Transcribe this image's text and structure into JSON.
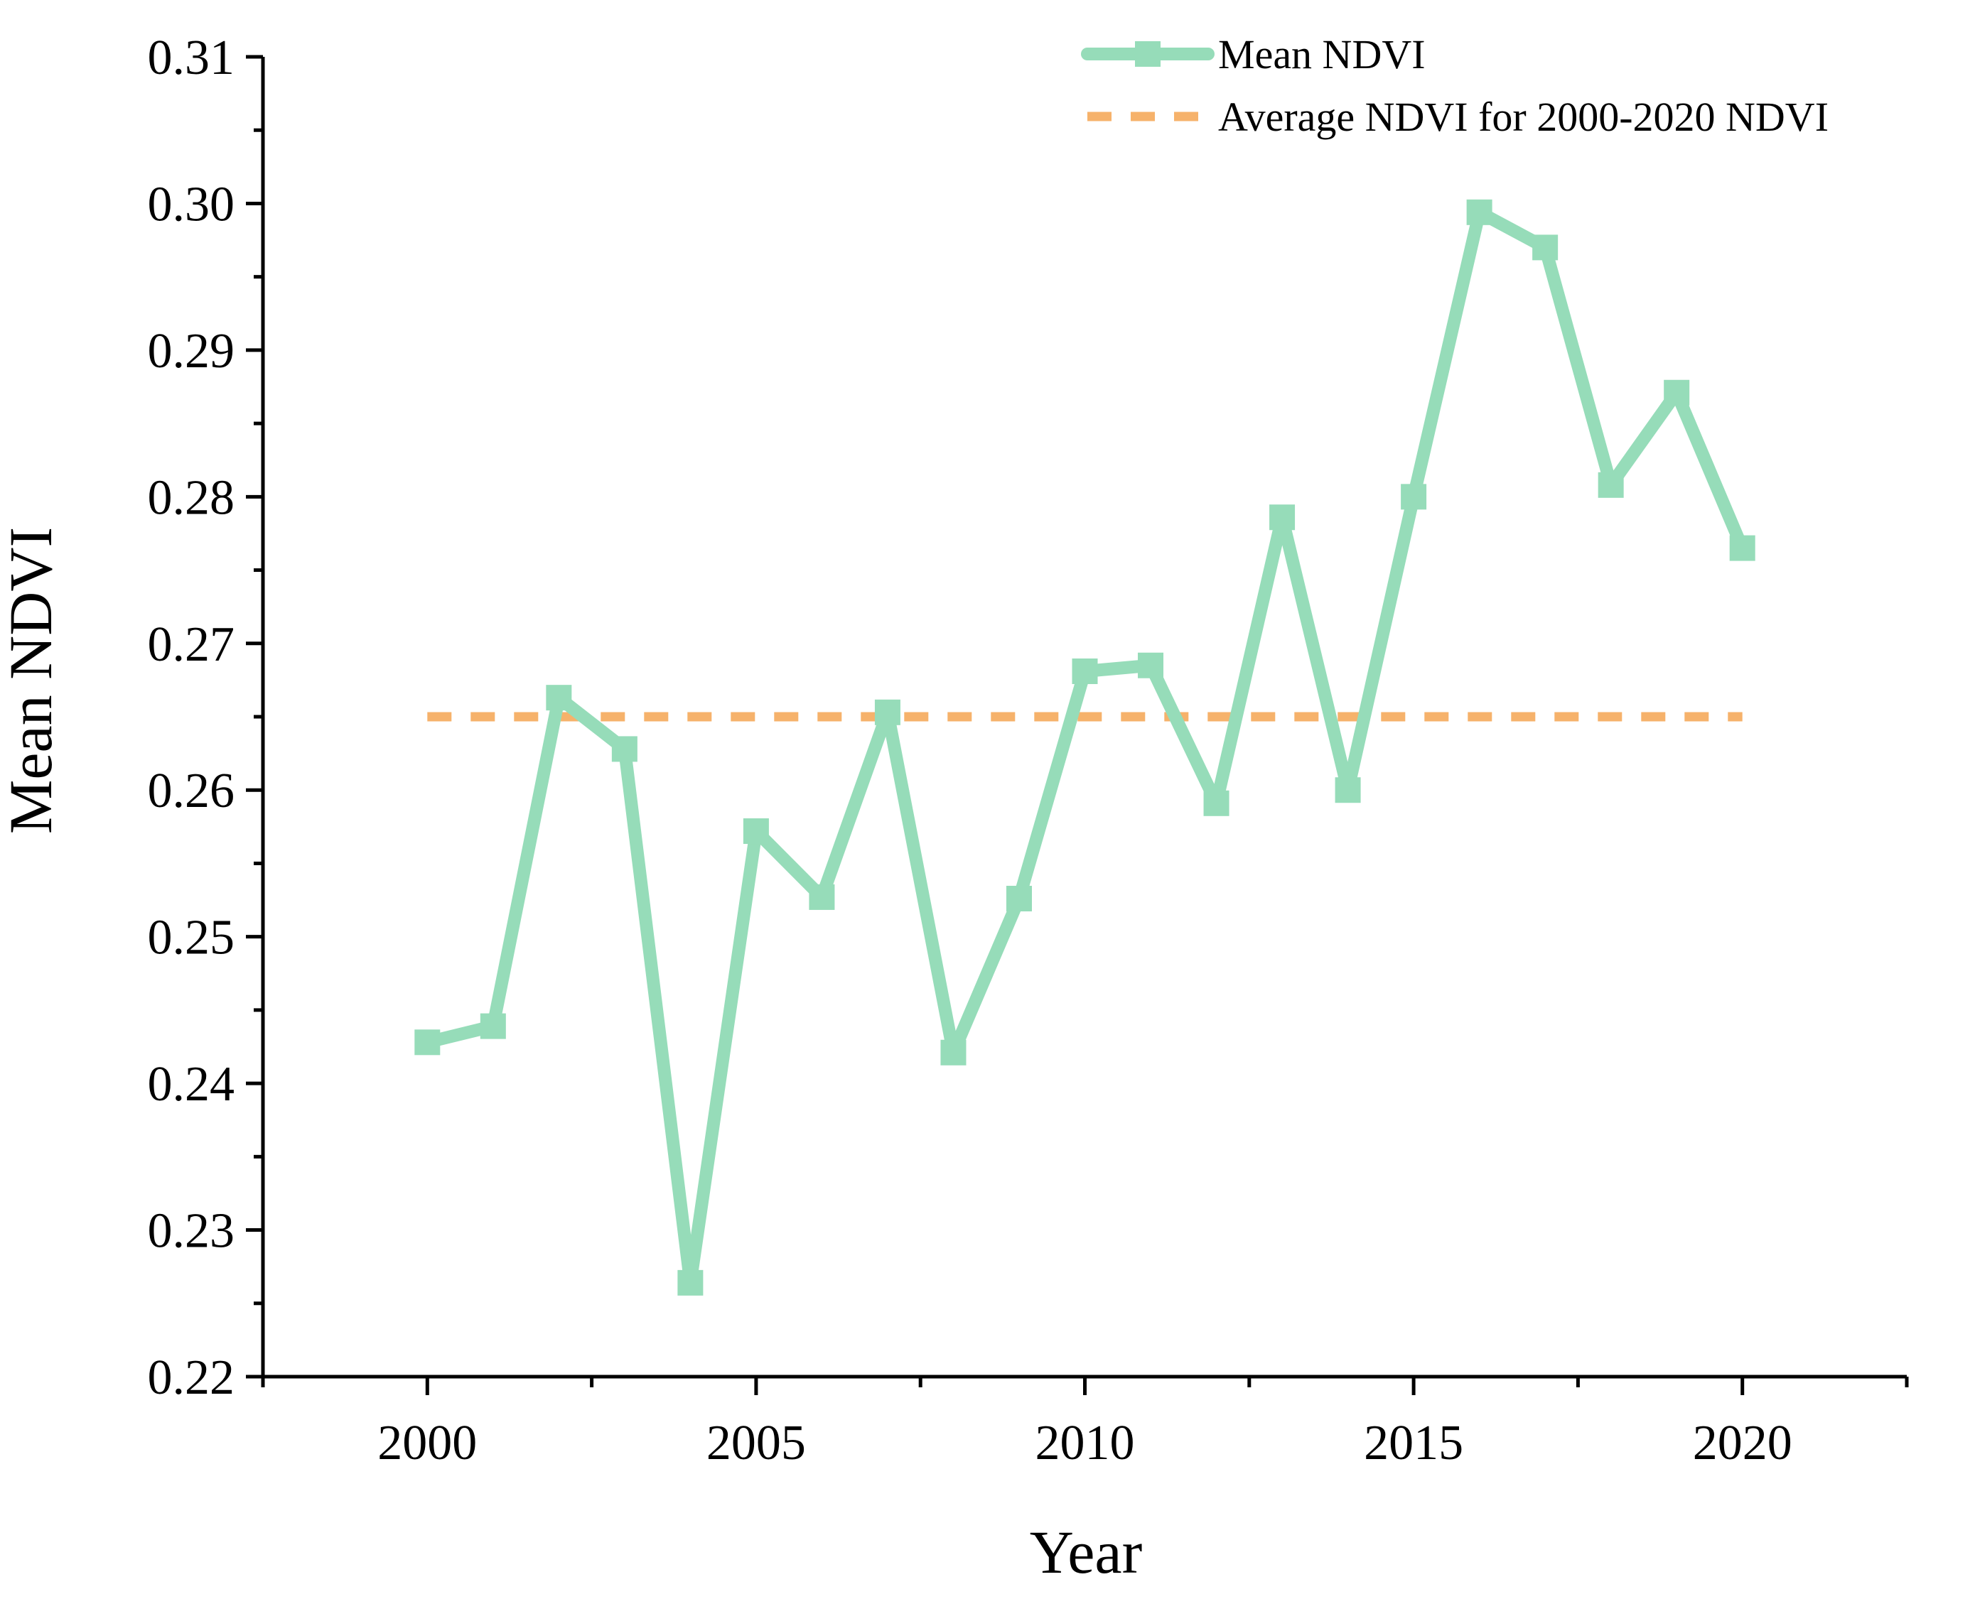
{
  "chart_data": {
    "type": "line",
    "title": "",
    "xlabel": "Year",
    "ylabel": "Mean NDVI",
    "xlim": [
      1997.5,
      2022.5
    ],
    "ylim": [
      0.22,
      0.31
    ],
    "x_ticks": [
      2000,
      2005,
      2010,
      2015,
      2020
    ],
    "x_tick_labels": [
      "2000",
      "2005",
      "2010",
      "2015",
      "2020"
    ],
    "y_ticks": [
      0.22,
      0.23,
      0.24,
      0.25,
      0.26,
      0.27,
      0.28,
      0.29,
      0.3,
      0.31
    ],
    "y_tick_labels": [
      "0.22",
      "0.23",
      "0.24",
      "0.25",
      "0.26",
      "0.27",
      "0.28",
      "0.29",
      "0.30",
      "0.31"
    ],
    "grid": false,
    "legend_position": "top-right",
    "series": [
      {
        "name": "Mean NDVI",
        "style": "solid-with-square-markers",
        "color": "#96dcb9",
        "x": [
          2000,
          2001,
          2002,
          2003,
          2004,
          2005,
          2006,
          2007,
          2008,
          2009,
          2010,
          2011,
          2012,
          2013,
          2014,
          2015,
          2016,
          2017,
          2018,
          2019,
          2020
        ],
        "values": [
          0.2428,
          0.2439,
          0.2663,
          0.2628,
          0.2264,
          0.2572,
          0.2527,
          0.2653,
          0.2421,
          0.2526,
          0.2681,
          0.2685,
          0.2591,
          0.2786,
          0.26,
          0.28,
          0.2994,
          0.297,
          0.2808,
          0.2871,
          0.2765
        ]
      },
      {
        "name": "Average NDVI for 2000-2020 NDVI",
        "style": "dashed",
        "color": "#f6b26b",
        "x": [
          2000,
          2020
        ],
        "values": [
          0.265,
          0.265
        ]
      }
    ]
  }
}
